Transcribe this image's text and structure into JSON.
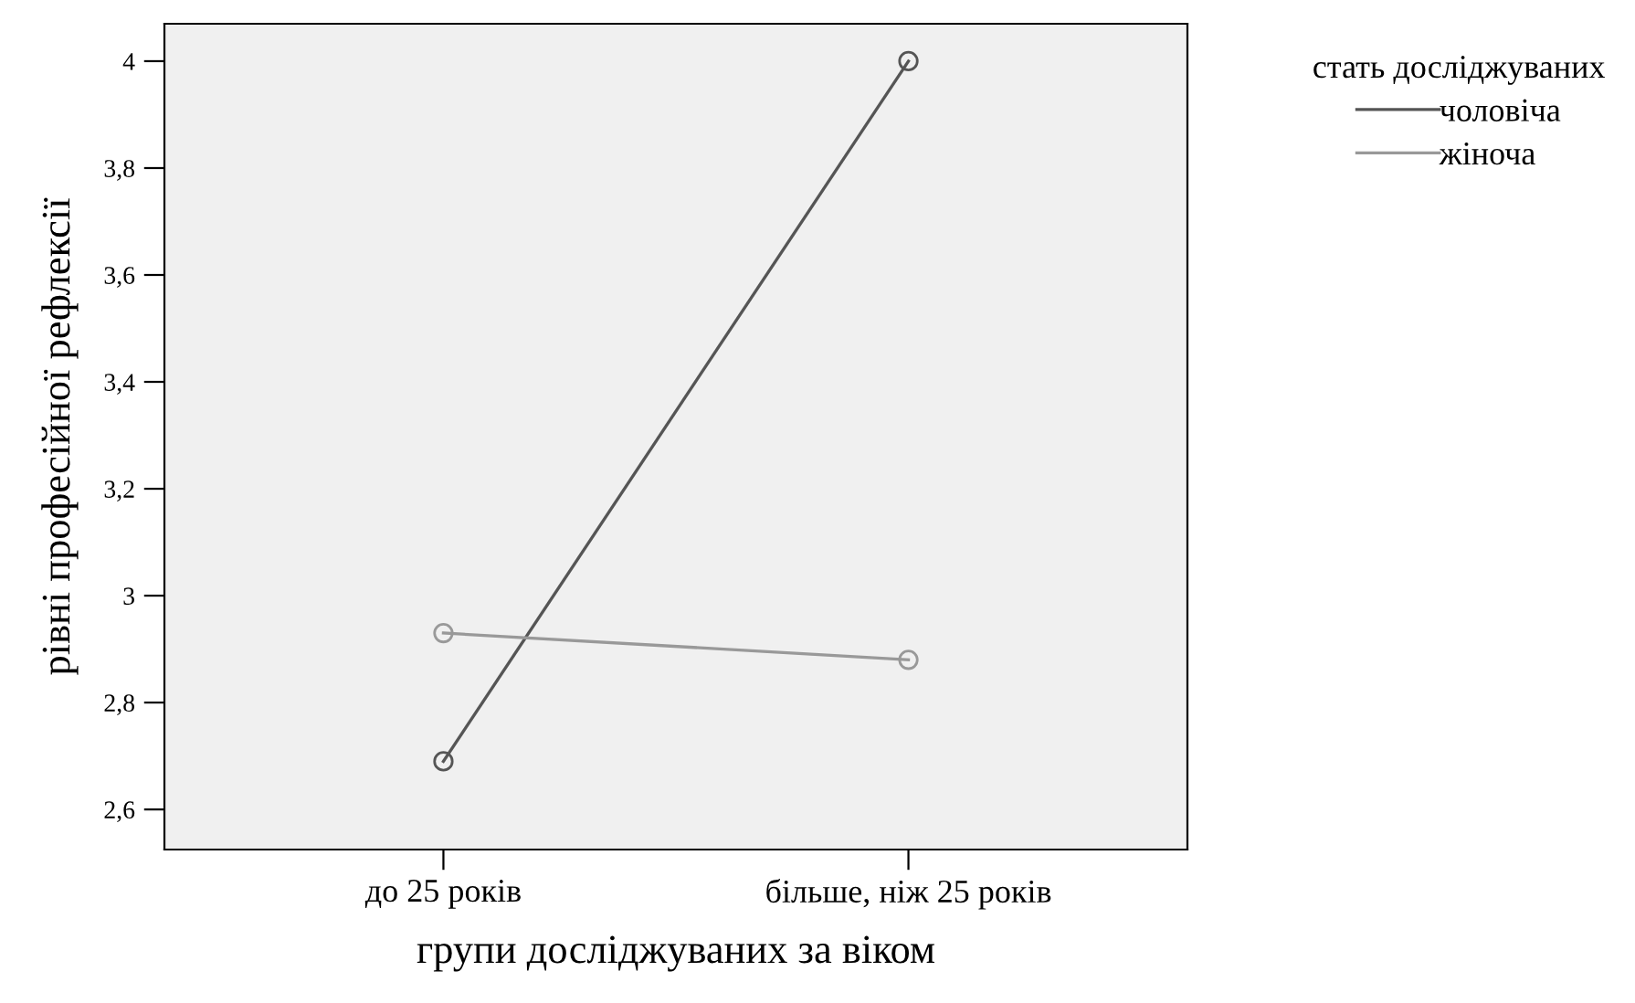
{
  "chart_data": {
    "type": "line",
    "xlabel": "групи досліджуваних за віком",
    "ylabel": "рівні професійної рефлексії",
    "legend_title": "стать досліджуваних",
    "categories": [
      "до 25 років",
      "більше, ніж 25 років"
    ],
    "series": [
      {
        "name": "чоловіча",
        "color": "#555555",
        "values": [
          2.69,
          4.0
        ]
      },
      {
        "name": "жіноча",
        "color": "#999999",
        "values": [
          2.93,
          2.88
        ]
      }
    ],
    "ylim": [
      2.525,
      4.07
    ],
    "yticks": [
      {
        "value": 2.6,
        "label": "2,6"
      },
      {
        "value": 2.8,
        "label": "2,8"
      },
      {
        "value": 3,
        "label": "3"
      },
      {
        "value": 3.2,
        "label": "3,2"
      },
      {
        "value": 3.4,
        "label": "3,4"
      },
      {
        "value": 3.6,
        "label": "3,6"
      },
      {
        "value": 3.8,
        "label": "3,8"
      },
      {
        "value": 4,
        "label": "4"
      }
    ],
    "marker": "circle",
    "line_style": "solid",
    "grid": false,
    "legend": "top right"
  }
}
